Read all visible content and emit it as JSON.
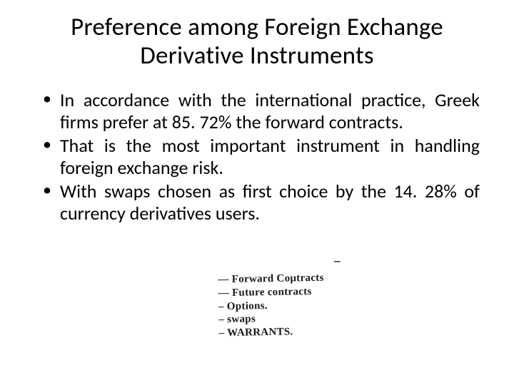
{
  "title": "Preference among Foreign Exchange Derivative Instruments",
  "bullets": [
    "In accordance with the international practice, Greek firms prefer at 85. 72% the forward contracts.",
    " That is the most important instrument in handling foreign exchange risk.",
    "With swaps chosen as  first choice  by the 14. 28%  of currency derivatives users."
  ],
  "handwriting": {
    "lines": [
      "— Forward  Coμtracts",
      "— Future  contracts",
      "–   Options.",
      "–  swaps",
      "–  WARRANTS."
    ],
    "arrow_mark": "–"
  },
  "colors": {
    "background": "#ffffff",
    "text": "#000000",
    "handwriting": "#1a1a1a"
  },
  "typography": {
    "title_fontsize": 35,
    "body_fontsize": 26,
    "handwriting_fontsize": 15
  }
}
